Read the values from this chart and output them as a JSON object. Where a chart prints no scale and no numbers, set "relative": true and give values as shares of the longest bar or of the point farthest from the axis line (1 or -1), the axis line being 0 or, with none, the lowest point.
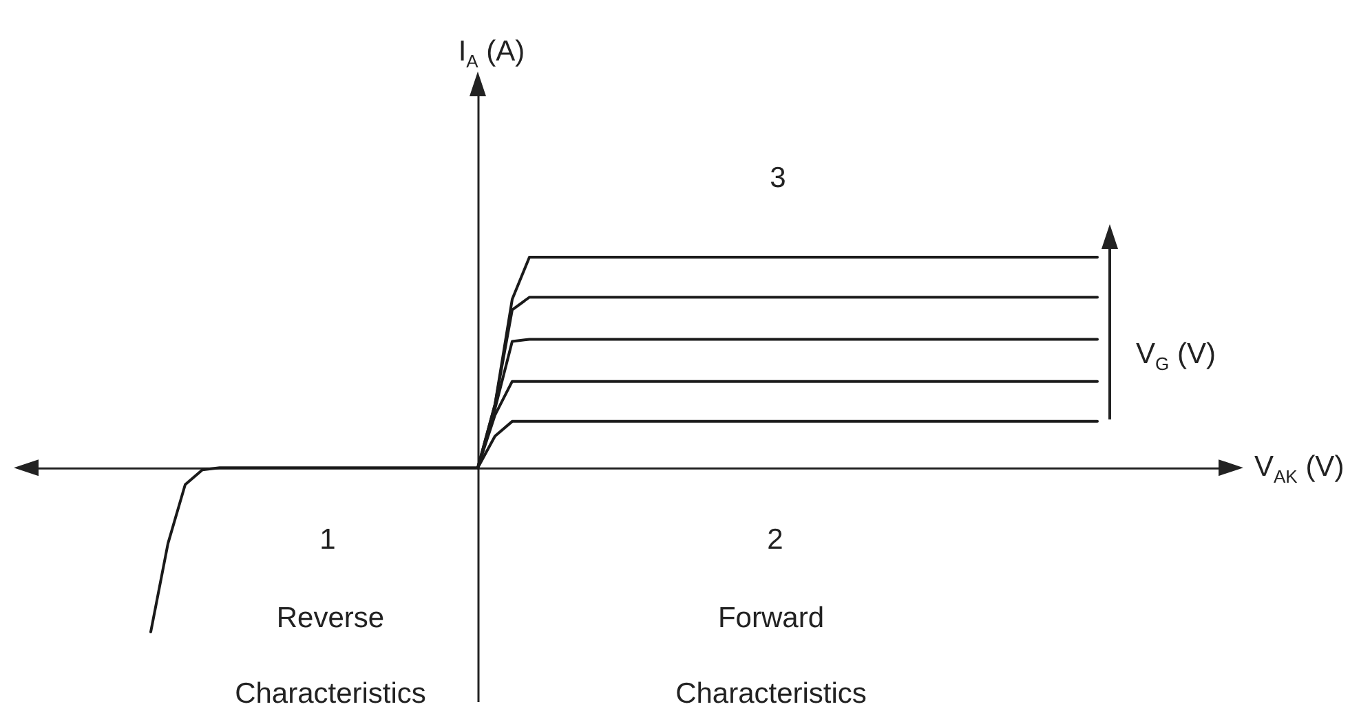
{
  "chart_data": {
    "type": "line",
    "relative": true,
    "xlabel": "V$_{AK}$ (V)",
    "annotations": [
      "I$_{A}$ (A)",
      "3",
      "1",
      "2",
      "Reverse Characteristics",
      "Forward Characteristics",
      "V$_{G}$ (V)"
    ],
    "categories": [
      null,
      null,
      null,
      null,
      null,
      null,
      null,
      null,
      null,
      null,
      null,
      null,
      null,
      null,
      null,
      null,
      null,
      null,
      null,
      null,
      null,
      null,
      null,
      null,
      null,
      null,
      null,
      null,
      null,
      null,
      null,
      null,
      null,
      null,
      null,
      null,
      null,
      null,
      null,
      null,
      null,
      null,
      null,
      null,
      null,
      null,
      null,
      null,
      null,
      null,
      null,
      null,
      null,
      null,
      null,
      null,
      null,
      null,
      null,
      null,
      null,
      null,
      null,
      null,
      null,
      null,
      null,
      null,
      null,
      null,
      null
    ],
    "series": [
      {
        "color": "#1a1a1a",
        "values": [
          null,
          null,
          null,
          null,
          null,
          null,
          null,
          null,
          null,
          null,
          null,
          null,
          null,
          null,
          null,
          null,
          null,
          null,
          null,
          null,
          null,
          null,
          null,
          null,
          null,
          null,
          0,
          0.3,
          0.8,
          1,
          1,
          1,
          1,
          1,
          1,
          1,
          1,
          1,
          1,
          1,
          1,
          1,
          1,
          1,
          1,
          1,
          1,
          1,
          1,
          1,
          1,
          1,
          1,
          1,
          1,
          1,
          1,
          1,
          1,
          1,
          1,
          1,
          1,
          null,
          null,
          null,
          null,
          null,
          null,
          null,
          null
        ]
      },
      {
        "color": "#1a1a1a",
        "values": [
          null,
          null,
          null,
          null,
          null,
          null,
          null,
          null,
          null,
          null,
          null,
          null,
          null,
          null,
          null,
          null,
          null,
          null,
          null,
          null,
          null,
          null,
          null,
          null,
          null,
          null,
          0,
          0.3,
          0.75,
          0.81,
          0.81,
          0.81,
          0.81,
          0.81,
          0.81,
          0.81,
          0.81,
          0.81,
          0.81,
          0.81,
          0.81,
          0.81,
          0.81,
          0.81,
          0.81,
          0.81,
          0.81,
          0.81,
          0.81,
          0.81,
          0.81,
          0.81,
          0.81,
          0.81,
          0.81,
          0.81,
          0.81,
          0.81,
          0.81,
          0.81,
          0.81,
          0.81,
          0.81,
          null,
          null,
          null,
          null,
          null,
          null,
          null,
          null
        ]
      },
      {
        "color": "#1a1a1a",
        "values": [
          null,
          null,
          null,
          null,
          null,
          null,
          null,
          null,
          null,
          null,
          null,
          null,
          null,
          null,
          null,
          null,
          null,
          null,
          null,
          null,
          null,
          null,
          null,
          null,
          null,
          null,
          0,
          0.28,
          0.6,
          0.61,
          0.61,
          0.61,
          0.61,
          0.61,
          0.61,
          0.61,
          0.61,
          0.61,
          0.61,
          0.61,
          0.61,
          0.61,
          0.61,
          0.61,
          0.61,
          0.61,
          0.61,
          0.61,
          0.61,
          0.61,
          0.61,
          0.61,
          0.61,
          0.61,
          0.61,
          0.61,
          0.61,
          0.61,
          0.61,
          0.61,
          0.61,
          0.61,
          0.61,
          null,
          null,
          null,
          null,
          null,
          null,
          null,
          null
        ]
      },
      {
        "color": "#1a1a1a",
        "values": [
          null,
          null,
          null,
          null,
          null,
          null,
          null,
          null,
          null,
          null,
          null,
          null,
          null,
          null,
          null,
          null,
          null,
          null,
          null,
          null,
          null,
          null,
          null,
          null,
          null,
          null,
          0,
          0.25,
          0.41,
          0.41,
          0.41,
          0.41,
          0.41,
          0.41,
          0.41,
          0.41,
          0.41,
          0.41,
          0.41,
          0.41,
          0.41,
          0.41,
          0.41,
          0.41,
          0.41,
          0.41,
          0.41,
          0.41,
          0.41,
          0.41,
          0.41,
          0.41,
          0.41,
          0.41,
          0.41,
          0.41,
          0.41,
          0.41,
          0.41,
          0.41,
          0.41,
          0.41,
          0.41,
          null,
          null,
          null,
          null,
          null,
          null,
          null,
          null
        ]
      },
      {
        "color": "#1a1a1a",
        "values": [
          null,
          null,
          null,
          null,
          null,
          null,
          null,
          null,
          null,
          null,
          null,
          null,
          null,
          null,
          null,
          null,
          null,
          null,
          null,
          null,
          null,
          null,
          null,
          null,
          null,
          null,
          0,
          0.15,
          0.22,
          0.22,
          0.22,
          0.22,
          0.22,
          0.22,
          0.22,
          0.22,
          0.22,
          0.22,
          0.22,
          0.22,
          0.22,
          0.22,
          0.22,
          0.22,
          0.22,
          0.22,
          0.22,
          0.22,
          0.22,
          0.22,
          0.22,
          0.22,
          0.22,
          0.22,
          0.22,
          0.22,
          0.22,
          0.22,
          0.22,
          0.22,
          0.22,
          0.22,
          0.22,
          null,
          null,
          null,
          null,
          null,
          null,
          null,
          null
        ]
      },
      {
        "color": "#1a1a1a",
        "values": [
          null,
          null,
          null,
          null,
          null,
          null,
          null,
          -0.78,
          -0.36,
          -0.08,
          -0.01,
          0,
          0,
          0,
          0,
          0,
          0,
          0,
          0,
          0,
          0,
          0,
          0,
          0,
          0,
          0,
          0,
          null,
          null,
          null,
          null,
          null,
          null,
          null,
          null,
          null,
          null,
          null,
          null,
          null,
          null,
          null,
          null,
          null,
          null,
          null,
          null,
          null,
          null,
          null,
          null,
          null,
          null,
          null,
          null,
          null,
          null,
          null,
          null,
          null,
          null,
          null,
          null,
          null,
          null,
          null,
          null,
          null,
          null,
          null,
          null
        ]
      }
    ]
  }
}
